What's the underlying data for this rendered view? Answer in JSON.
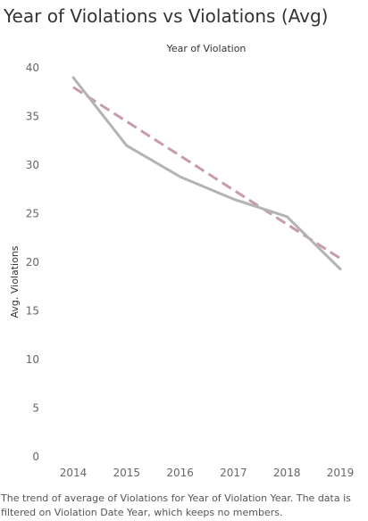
{
  "chart_data": {
    "type": "line",
    "title": "Year of Violations vs Violations (Avg)",
    "xlabel": "Year of Violation",
    "ylabel": "Avg. Violations",
    "categories": [
      "2014",
      "2015",
      "2016",
      "2017",
      "2018",
      "2019"
    ],
    "yticks": [
      0,
      5,
      10,
      15,
      20,
      25,
      30,
      35,
      40
    ],
    "ylim": [
      0,
      40
    ],
    "series": [
      {
        "values": [
          39.0,
          32.0,
          28.8,
          26.5,
          24.7,
          19.3
        ],
        "color": "#b3b3b3",
        "style": "solid"
      }
    ],
    "trend_line": {
      "start": 38.0,
      "end": 20.4,
      "color": "#c79aae",
      "style": "dashed"
    },
    "grid": false
  },
  "caption": "The trend of average of Violations for Year of Violation Year. The data is filtered on Violation Date Year, which keeps no members."
}
